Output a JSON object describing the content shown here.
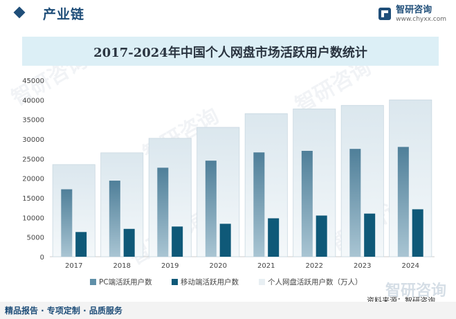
{
  "header": {
    "section_title": "产业链",
    "brand_name": "智研咨询",
    "brand_url": "www.chyxx.com"
  },
  "footer": {
    "tagline": "精品报告 · 专项定制 · 品质服务",
    "source": "资料来源：智研咨询",
    "logo_text": "智研咨询"
  },
  "colors": {
    "accent": "#1f4e79",
    "band": "#dceff6",
    "pc": "#5f8fa8",
    "mobile": "#0f5978",
    "total": "#e8eff3"
  },
  "chart_data": {
    "type": "bar",
    "title": "2017-2024年中国个人网盘市场活跃用户数统计",
    "xlabel": "",
    "ylabel": "",
    "ylim": [
      0,
      45000
    ],
    "yticks": [
      0,
      5000,
      10000,
      15000,
      20000,
      25000,
      30000,
      35000,
      40000,
      45000
    ],
    "categories": [
      "2017",
      "2018",
      "2019",
      "2020",
      "2021",
      "2022",
      "2023",
      "2024"
    ],
    "series": [
      {
        "name": "个人网盘活跃用户数（万人）",
        "values": [
          23500,
          26500,
          30200,
          33000,
          36500,
          37700,
          38600,
          40000
        ]
      },
      {
        "name": "PC端活跃用户数",
        "values": [
          17200,
          19400,
          22700,
          24500,
          26600,
          27000,
          27500,
          28000
        ]
      },
      {
        "name": "移动端活跃用户数",
        "values": [
          6300,
          7100,
          7700,
          8400,
          9800,
          10500,
          11000,
          12100
        ]
      }
    ],
    "legend_position": "bottom"
  }
}
